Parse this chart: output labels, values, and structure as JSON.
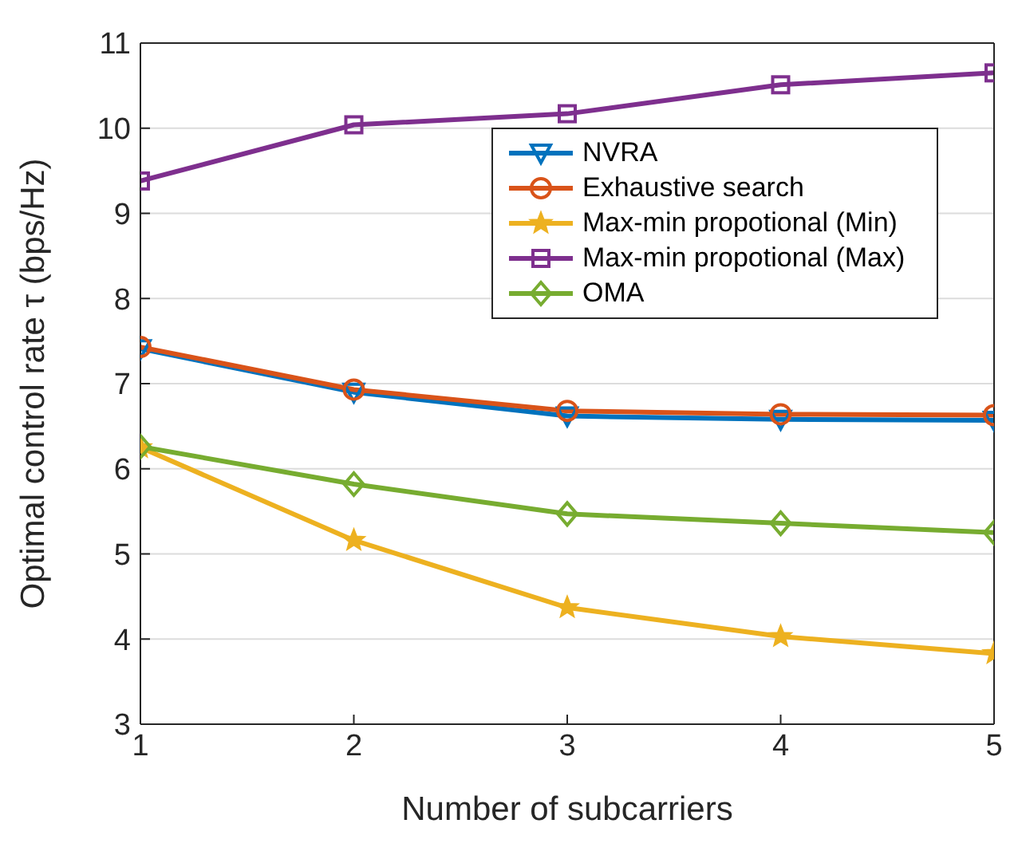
{
  "chart_data": {
    "type": "line",
    "xlabel": "Number of subcarriers",
    "ylabel": "Optimal control rate  τ (bps/Hz)",
    "x": [
      1,
      2,
      3,
      4,
      5
    ],
    "xlim": [
      1,
      5
    ],
    "xticks": [
      1,
      2,
      3,
      4,
      5
    ],
    "ylim": [
      3,
      11
    ],
    "yticks": [
      3,
      4,
      5,
      6,
      7,
      8,
      9,
      10,
      11
    ],
    "grid": "y",
    "legend": "top right",
    "series": [
      {
        "name": "NVRA",
        "color": "#0072bd",
        "marker": "triangle",
        "values": [
          7.41,
          6.9,
          6.62,
          6.58,
          6.57
        ]
      },
      {
        "name": "Exhaustive search",
        "color": "#d95319",
        "marker": "circle",
        "values": [
          7.43,
          6.93,
          6.68,
          6.64,
          6.63
        ]
      },
      {
        "name": "Max-min propotional (Min)",
        "color": "#edb120",
        "marker": "star",
        "values": [
          6.25,
          5.16,
          4.37,
          4.03,
          3.83
        ]
      },
      {
        "name": "Max-min propotional (Max)",
        "color": "#7e2f8e",
        "marker": "square",
        "values": [
          9.38,
          10.04,
          10.17,
          10.51,
          10.65
        ]
      },
      {
        "name": "OMA",
        "color": "#77ac30",
        "marker": "diamond",
        "values": [
          6.26,
          5.82,
          5.47,
          5.36,
          5.25
        ]
      }
    ]
  }
}
